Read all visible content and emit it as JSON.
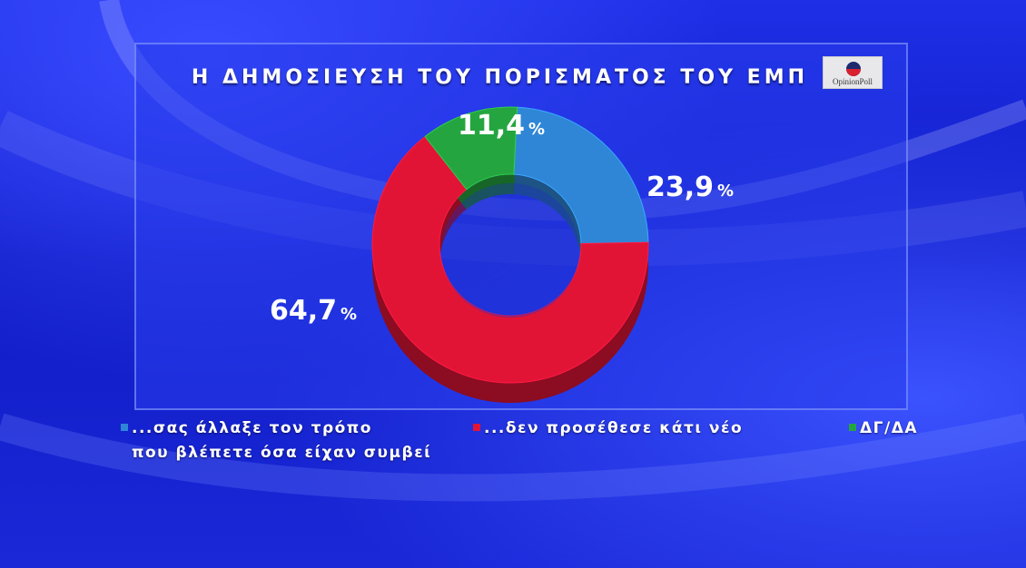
{
  "title": "Η ΔΗΜΟΣΙΕΥΣΗ ΤΟΥ ΠΟΡΙΣΜΑΤΟΣ ΤΟΥ ΕΜΠ",
  "logo": {
    "text": "OpinionPoll"
  },
  "colors": {
    "blue": "#2f86d6",
    "red": "#e21436",
    "green": "#25a540"
  },
  "chart_data": {
    "type": "pie",
    "title": "Η ΔΗΜΟΣΙΕΥΣΗ ΤΟΥ ΠΟΡΙΣΜΑΤΟΣ ΤΟΥ ΕΜΠ",
    "donut": true,
    "slices": [
      {
        "name": "...σας άλλαξε τον τρόπο που βλέπετε όσα είχαν συμβεί",
        "value": 23.9,
        "label": "23,9",
        "color": "#2f86d6"
      },
      {
        "name": "...δεν προσέθεσε κάτι νέο",
        "value": 64.7,
        "label": "64,7",
        "color": "#e21436"
      },
      {
        "name": "ΔΓ/ΔΑ",
        "value": 11.4,
        "label": "11,4",
        "color": "#25a540"
      }
    ],
    "unit": "%"
  },
  "legend": {
    "item1_line1": "...σας άλλαξε τον τρόπο",
    "item1_line2": "που βλέπετε όσα είχαν συμβεί",
    "item2": "...δεν προσέθεσε κάτι νέο",
    "item3": "ΔΓ/ΔΑ"
  }
}
